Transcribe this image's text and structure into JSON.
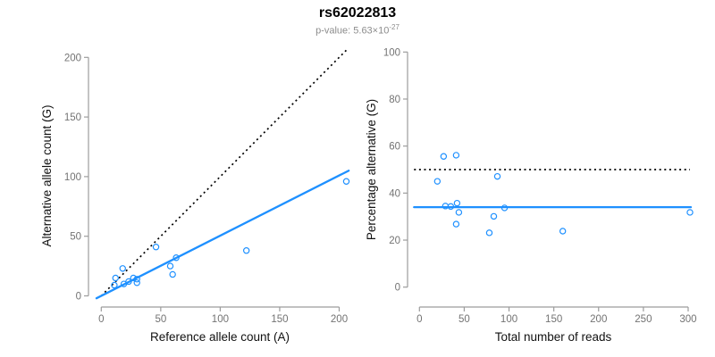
{
  "header": {
    "title": "rs62022813",
    "p_label": "p-value: 5.63×10",
    "p_exp": "-27"
  },
  "colors": {
    "accent_blue": "#1E90FF",
    "dotted_line": "#000000",
    "axis_line": "#9c9c9c",
    "tick_label": "#737373",
    "axis_title": "#111111"
  },
  "chart_data": [
    {
      "type": "scatter",
      "name": "allele-counts-plot",
      "xlabel": "Reference allele count (A)",
      "ylabel": "Alternative allele count (G)",
      "xlim": [
        0,
        208
      ],
      "ylim": [
        0,
        207
      ],
      "xticks": [
        0,
        50,
        100,
        150,
        200
      ],
      "yticks": [
        0,
        50,
        100,
        150,
        200
      ],
      "grid": false,
      "points": [
        [
          12,
          15
        ],
        [
          18,
          23
        ],
        [
          11,
          9
        ],
        [
          46,
          41
        ],
        [
          19,
          10
        ],
        [
          23,
          12
        ],
        [
          27,
          15
        ],
        [
          30,
          14
        ],
        [
          30,
          11
        ],
        [
          58,
          25
        ],
        [
          63,
          32
        ],
        [
          60,
          18
        ],
        [
          122,
          38
        ],
        [
          206,
          96
        ]
      ],
      "lines": [
        {
          "name": "identity-line",
          "style": "dotted",
          "color": "#000000",
          "x1": 0,
          "y1": 0,
          "x2": 207,
          "y2": 207
        },
        {
          "name": "regression-line",
          "style": "solid",
          "color": "#1E90FF",
          "x1": -4,
          "y1": -2,
          "x2": 208,
          "y2": 105
        }
      ]
    },
    {
      "type": "scatter",
      "name": "percentage-alternative-plot",
      "xlabel": "Total number of reads",
      "ylabel": "Percentage alternative (G)",
      "xlim": [
        0,
        310
      ],
      "ylim": [
        0,
        100
      ],
      "xticks": [
        0,
        50,
        100,
        150,
        200,
        250,
        300
      ],
      "yticks": [
        0,
        20,
        40,
        60,
        80,
        100
      ],
      "grid": false,
      "points": [
        [
          27,
          55.6
        ],
        [
          41,
          56.1
        ],
        [
          20,
          45.0
        ],
        [
          87,
          47.1
        ],
        [
          29,
          34.5
        ],
        [
          35,
          34.3
        ],
        [
          42,
          35.7
        ],
        [
          44,
          31.8
        ],
        [
          41,
          26.8
        ],
        [
          83,
          30.1
        ],
        [
          95,
          33.7
        ],
        [
          78,
          23.1
        ],
        [
          160,
          23.8
        ],
        [
          302,
          31.8
        ]
      ],
      "lines": [
        {
          "name": "expected-50pct-line",
          "style": "dotted",
          "color": "#000000",
          "x1": -6,
          "y1": 50,
          "x2": 302,
          "y2": 50
        },
        {
          "name": "mean-percentage-line",
          "style": "solid",
          "color": "#1E90FF",
          "x1": -6,
          "y1": 34,
          "x2": 303,
          "y2": 34
        }
      ]
    }
  ]
}
